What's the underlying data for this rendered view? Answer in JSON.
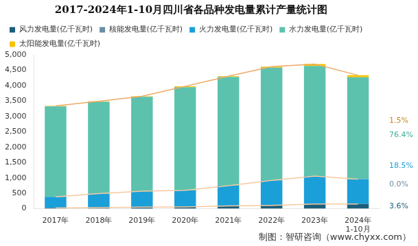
{
  "chart_data": {
    "type": "bar",
    "stacked": true,
    "title": "2017-2024年1-10月四川省各品种发电量累计产量统计图",
    "categories": [
      "2017年",
      "2018年",
      "2019年",
      "2020年",
      "2021年",
      "2022年",
      "2023年",
      "2024年\n1-10月"
    ],
    "series": [
      {
        "name": "风力发电量(亿千瓦时)",
        "color": "#1b5e7a",
        "values": [
          25,
          35,
          50,
          60,
          90,
          110,
          150,
          155
        ]
      },
      {
        "name": "核能发电量(亿千瓦时)",
        "color": "#6b8fa3",
        "values": [
          0,
          0,
          0,
          0,
          0,
          0,
          0,
          0
        ]
      },
      {
        "name": "火力发电量(亿千瓦时)",
        "color": "#1a9fd8",
        "values": [
          360,
          455,
          520,
          540,
          660,
          810,
          910,
          805
        ]
      },
      {
        "name": "水力发电量(亿千瓦时)",
        "color": "#5cc2ad",
        "values": [
          2940,
          2985,
          3065,
          3350,
          3530,
          3660,
          3580,
          3310
        ]
      },
      {
        "name": "太阳能发电量(亿千瓦时)",
        "color": "#f5c400",
        "values": [
          15,
          15,
          20,
          25,
          25,
          35,
          60,
          65
        ]
      }
    ],
    "ylim": [
      0,
      5000
    ],
    "yticks": [
      0,
      500,
      1000,
      1500,
      2000,
      2500,
      3000,
      3500,
      4000,
      4500,
      5000
    ],
    "grid": false,
    "legend": "top",
    "annotations": [
      {
        "text": "1.5%",
        "color": "#c9861a"
      },
      {
        "text": "76.4%",
        "color": "#3fae9b"
      },
      {
        "text": "18.5%",
        "color": "#1a9fd8"
      },
      {
        "text": "0.0%",
        "color": "#6b8fa3"
      },
      {
        "text": "3.6%",
        "color": "#1b5e7a"
      }
    ],
    "source": "制图：智研咨询（www.chyxx.com）"
  }
}
